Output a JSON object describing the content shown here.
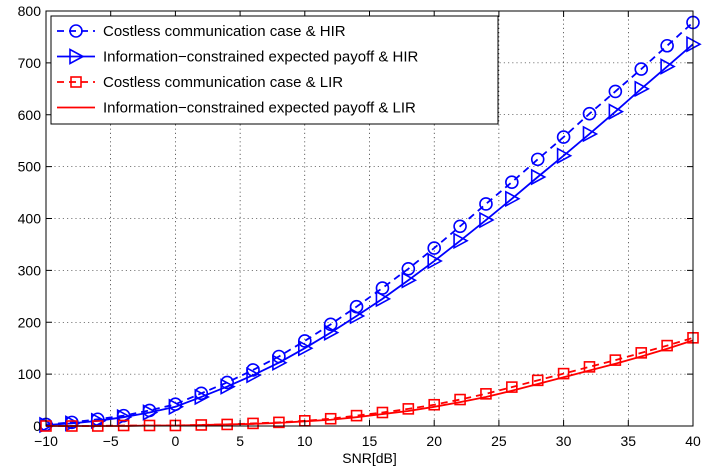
{
  "chart_data": {
    "type": "line",
    "xlabel": "SNR[dB]",
    "ylabel": "",
    "xlim": [
      -10,
      40
    ],
    "ylim": [
      0,
      800
    ],
    "xticks": [
      -10,
      -5,
      0,
      5,
      10,
      15,
      20,
      25,
      30,
      35,
      40
    ],
    "yticks": [
      0,
      100,
      200,
      300,
      400,
      500,
      600,
      700,
      800
    ],
    "grid": true,
    "legend_position": "top-left",
    "x": [
      -10,
      -8,
      -6,
      -4,
      -2,
      0,
      2,
      4,
      6,
      8,
      10,
      12,
      14,
      16,
      18,
      20,
      22,
      24,
      26,
      28,
      30,
      32,
      34,
      36,
      38,
      40
    ],
    "series": [
      {
        "name": "Costless communication case & HIR",
        "color": "#0000ff",
        "line_style": "dashed",
        "marker": "circle",
        "values": [
          3,
          7,
          13,
          20,
          30,
          42,
          63,
          84,
          108,
          134,
          164,
          196,
          230,
          266,
          303,
          343,
          385,
          428,
          470,
          514,
          557,
          602,
          645,
          688,
          733,
          778
        ]
      },
      {
        "name": "Information−constrained expected payoff & HIR",
        "color": "#0000ff",
        "line_style": "solid",
        "marker": "triangle-right",
        "values": [
          2,
          5,
          10,
          17,
          26,
          37,
          56,
          76,
          98,
          122,
          150,
          180,
          212,
          245,
          281,
          318,
          357,
          397,
          438,
          480,
          521,
          563,
          606,
          650,
          693,
          736
        ]
      },
      {
        "name": "Costless communication case & LIR",
        "color": "#ff0000",
        "line_style": "dashed",
        "marker": "square",
        "values": [
          0,
          0,
          0,
          1,
          1,
          1,
          2,
          3,
          5,
          7,
          10,
          14,
          20,
          26,
          33,
          41,
          51,
          62,
          75,
          88,
          101,
          114,
          127,
          141,
          155,
          170
        ]
      },
      {
        "name": "Information−constrained expected payoff & LIR",
        "color": "#ff0000",
        "line_style": "solid",
        "marker": "none",
        "values": [
          0,
          0,
          0,
          0,
          1,
          1,
          2,
          3,
          4,
          6,
          9,
          12,
          17,
          23,
          29,
          37,
          46,
          56,
          68,
          81,
          94,
          107,
          120,
          134,
          149,
          165
        ]
      }
    ]
  }
}
